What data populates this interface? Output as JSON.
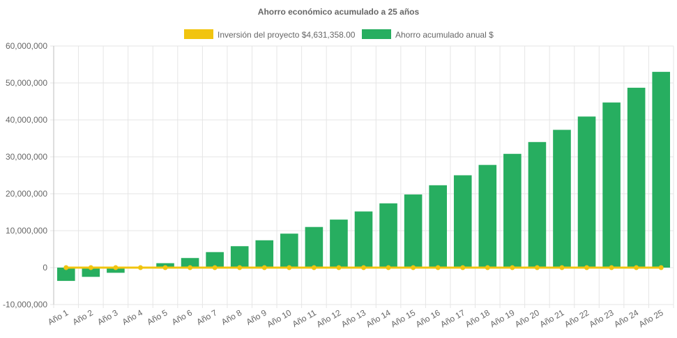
{
  "chart_data": {
    "type": "bar",
    "title": "Ahorro económico acumulado a 25 años",
    "xlabel": "",
    "ylabel": "",
    "ylim": [
      -10000000,
      60000000
    ],
    "yticks": [
      60000000,
      50000000,
      40000000,
      30000000,
      20000000,
      10000000,
      0,
      -10000000
    ],
    "ytick_labels": [
      "60,000,000",
      "50,000,000",
      "40,000,000",
      "30,000,000",
      "20,000,000",
      "10,000,000",
      "0",
      "-10,000,000"
    ],
    "grid": true,
    "legend_position": "top",
    "categories": [
      "Año 1",
      "Año 2",
      "Año 3",
      "Año 4",
      "Año 5",
      "Año 6",
      "Año 7",
      "Año 8",
      "Año 9",
      "Año 10",
      "Año 11",
      "Año 12",
      "Año 13",
      "Año 14",
      "Año 15",
      "Año 16",
      "Año 17",
      "Año 18",
      "Año 19",
      "Año 20",
      "Año 21",
      "Año 22",
      "Año 23",
      "Año 24",
      "Año 25"
    ],
    "series": [
      {
        "name": "Inversión del proyecto $4,631,358.00",
        "type": "line",
        "color": "#f1c40f",
        "values": [
          0,
          0,
          0,
          0,
          0,
          0,
          0,
          0,
          0,
          0,
          0,
          0,
          0,
          0,
          0,
          0,
          0,
          0,
          0,
          0,
          0,
          0,
          0,
          0,
          0
        ]
      },
      {
        "name": "Ahorro acumulado anual $",
        "type": "bar",
        "color": "#27ae60",
        "values": [
          -3600000,
          -2500000,
          -1400000,
          -100000,
          1200000,
          2600000,
          4200000,
          5800000,
          7400000,
          9200000,
          11000000,
          13000000,
          15200000,
          17400000,
          19800000,
          22300000,
          25000000,
          27800000,
          30800000,
          34000000,
          37300000,
          40900000,
          44700000,
          48700000,
          53000000
        ]
      }
    ]
  }
}
